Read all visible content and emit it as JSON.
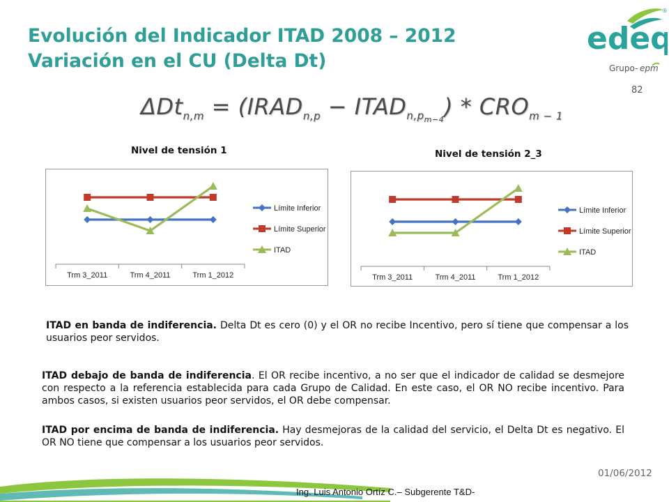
{
  "title": {
    "line1": "Evolución del Indicador ITAD 2008 – 2012",
    "line2": "Variación en el CU (Delta Dt)"
  },
  "logo": {
    "wordmark": "edeq",
    "group_prefix": "Grupo-",
    "group_brand": "epm",
    "registered": "®"
  },
  "slide_number": "82",
  "formula": {
    "lhs": "ΔDt",
    "lhs_sub": "n,m",
    "eq": " = (IRAD",
    "irad_sub": "n,p",
    "minus": " − ITAD",
    "itad_sub": "n,p",
    "itad_subsub": "m−4",
    "close": ") * CRO",
    "cro_sub": "m − 1"
  },
  "chart_data": [
    {
      "type": "line",
      "title": "Nivel de tensión 1",
      "categories": [
        "Trm 3_2011",
        "Trm 4_2011",
        "Trm 1_2012"
      ],
      "series": [
        {
          "name": "Límite Inferior",
          "values": [
            2.0,
            2.0,
            2.0
          ],
          "color": "#4472c4",
          "marker": "diamond"
        },
        {
          "name": "Límite Superior",
          "values": [
            3.0,
            3.0,
            3.0
          ],
          "color": "#c0392b",
          "marker": "square"
        },
        {
          "name": "ITAD",
          "values": [
            2.5,
            1.5,
            3.5
          ],
          "color": "#9bbb59",
          "marker": "triangle"
        }
      ],
      "ylim": [
        0,
        4
      ],
      "legend": "right",
      "grid": false
    },
    {
      "type": "line",
      "title": "Nivel de tensión 2_3",
      "categories": [
        "Trm 3_2011",
        "Trm 4_2011",
        "Trm 1_2012"
      ],
      "series": [
        {
          "name": "Límite Inferior",
          "values": [
            2.0,
            2.0,
            2.0
          ],
          "color": "#4472c4",
          "marker": "diamond"
        },
        {
          "name": "Límite Superior",
          "values": [
            3.0,
            3.0,
            3.0
          ],
          "color": "#c0392b",
          "marker": "square"
        },
        {
          "name": "ITAD",
          "values": [
            1.5,
            1.5,
            3.5
          ],
          "color": "#9bbb59",
          "marker": "triangle"
        }
      ],
      "ylim": [
        0,
        4
      ],
      "legend": "right",
      "grid": false
    }
  ],
  "paragraphs": [
    {
      "bold": "ITAD en banda de indiferencia.",
      "text": " Delta Dt es cero (0) y el OR no recibe Incentivo, pero sí tiene que compensar a los usuarios peor servidos."
    },
    {
      "bold": "ITAD debajo de banda de indiferencia",
      "text": ". El OR recibe incentivo, a no ser que el indicador de calidad se desmejore con respecto a la referencia establecida para cada Grupo de Calidad. En este caso, el OR NO recibe incentivo. Para ambos casos, si existen usuarios peor servidos, el OR debe compensar."
    },
    {
      "bold": "ITAD por encima de banda de indiferencia.",
      "text": " Hay desmejoras de la calidad del servicio, el Delta Dt es negativo. El OR NO tiene que compensar a los usuarios peor servidos."
    }
  ],
  "date": "01/06/2012",
  "footer": "Ing. Luis Antonio Ortíz C.– Subgerente T&D-",
  "colors": {
    "title": "#2f9e96",
    "logo_teal": "#2aa39a",
    "logo_green": "#8cc63f",
    "swoosh_green": "#8cc63f",
    "swoosh_teal": "#2aa39a"
  }
}
